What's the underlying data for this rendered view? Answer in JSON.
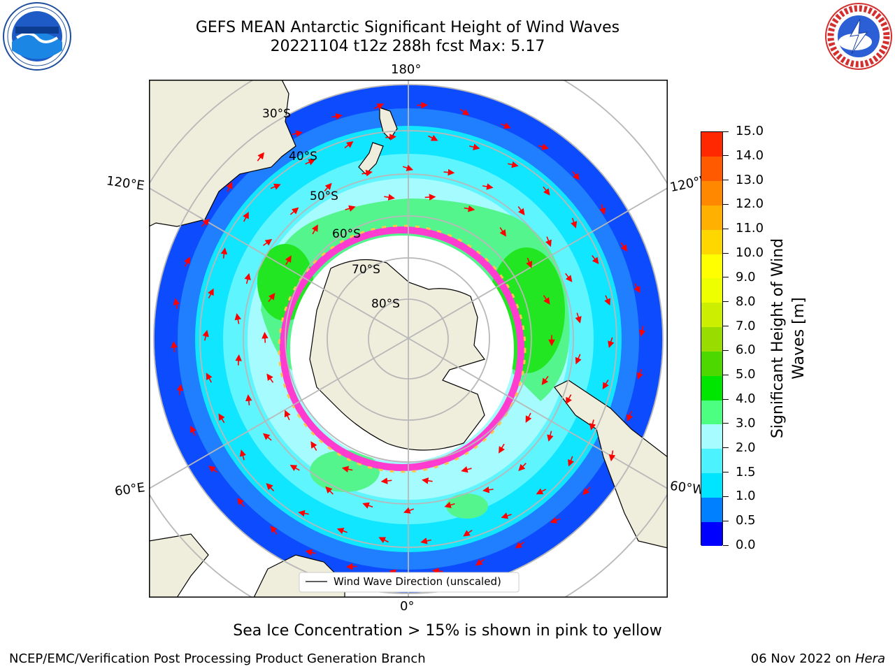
{
  "title": {
    "line1": "GEFS MEAN Antarctic Significant Height of Wind Waves",
    "line2": "20221104 t12z 288h fcst   Max: 5.17"
  },
  "logos": {
    "left": "noaa-logo",
    "right": "national-weather-service-logo"
  },
  "map": {
    "projection": "south-polar-stereographic",
    "legend_label": "Wind Wave Direction (unscaled)",
    "arrow_color": "#ff0000",
    "land_color": "#efeedc",
    "lat_labels": [
      "30°S",
      "40°S",
      "50°S",
      "60°S",
      "70°S",
      "80°S"
    ],
    "lon_labels": {
      "top": "180°",
      "upper_left": "120°E",
      "upper_right": "120°W",
      "lower_left": "60°E",
      "lower_right": "60°W",
      "bottom": "0°"
    }
  },
  "colorbar": {
    "title_line1": "Significant Height of Wind",
    "title_line2": "Waves [m]",
    "ticks": [
      "0.0",
      "0.5",
      "1.0",
      "1.5",
      "2.0",
      "3.0",
      "4.0",
      "5.0",
      "6.0",
      "7.0",
      "8.0",
      "9.0",
      "10.0",
      "11.0",
      "12.0",
      "13.0",
      "14.0",
      "15.0"
    ],
    "colors": [
      "#0000ff",
      "#0080ff",
      "#00e5ff",
      "#4df2ff",
      "#a6fcff",
      "#4dff80",
      "#00e600",
      "#4dd900",
      "#99dd00",
      "#ccee00",
      "#eeff00",
      "#ffff00",
      "#ffd700",
      "#ffb000",
      "#ff8800",
      "#ff5a00",
      "#ff2800"
    ]
  },
  "footer": {
    "note": "Sea Ice Concentration > 15% is shown in pink to yellow",
    "credit": "NCEP/EMC/Verification Post Processing Product Generation Branch",
    "date": "06 Nov 2022 on",
    "host": "Hera"
  }
}
